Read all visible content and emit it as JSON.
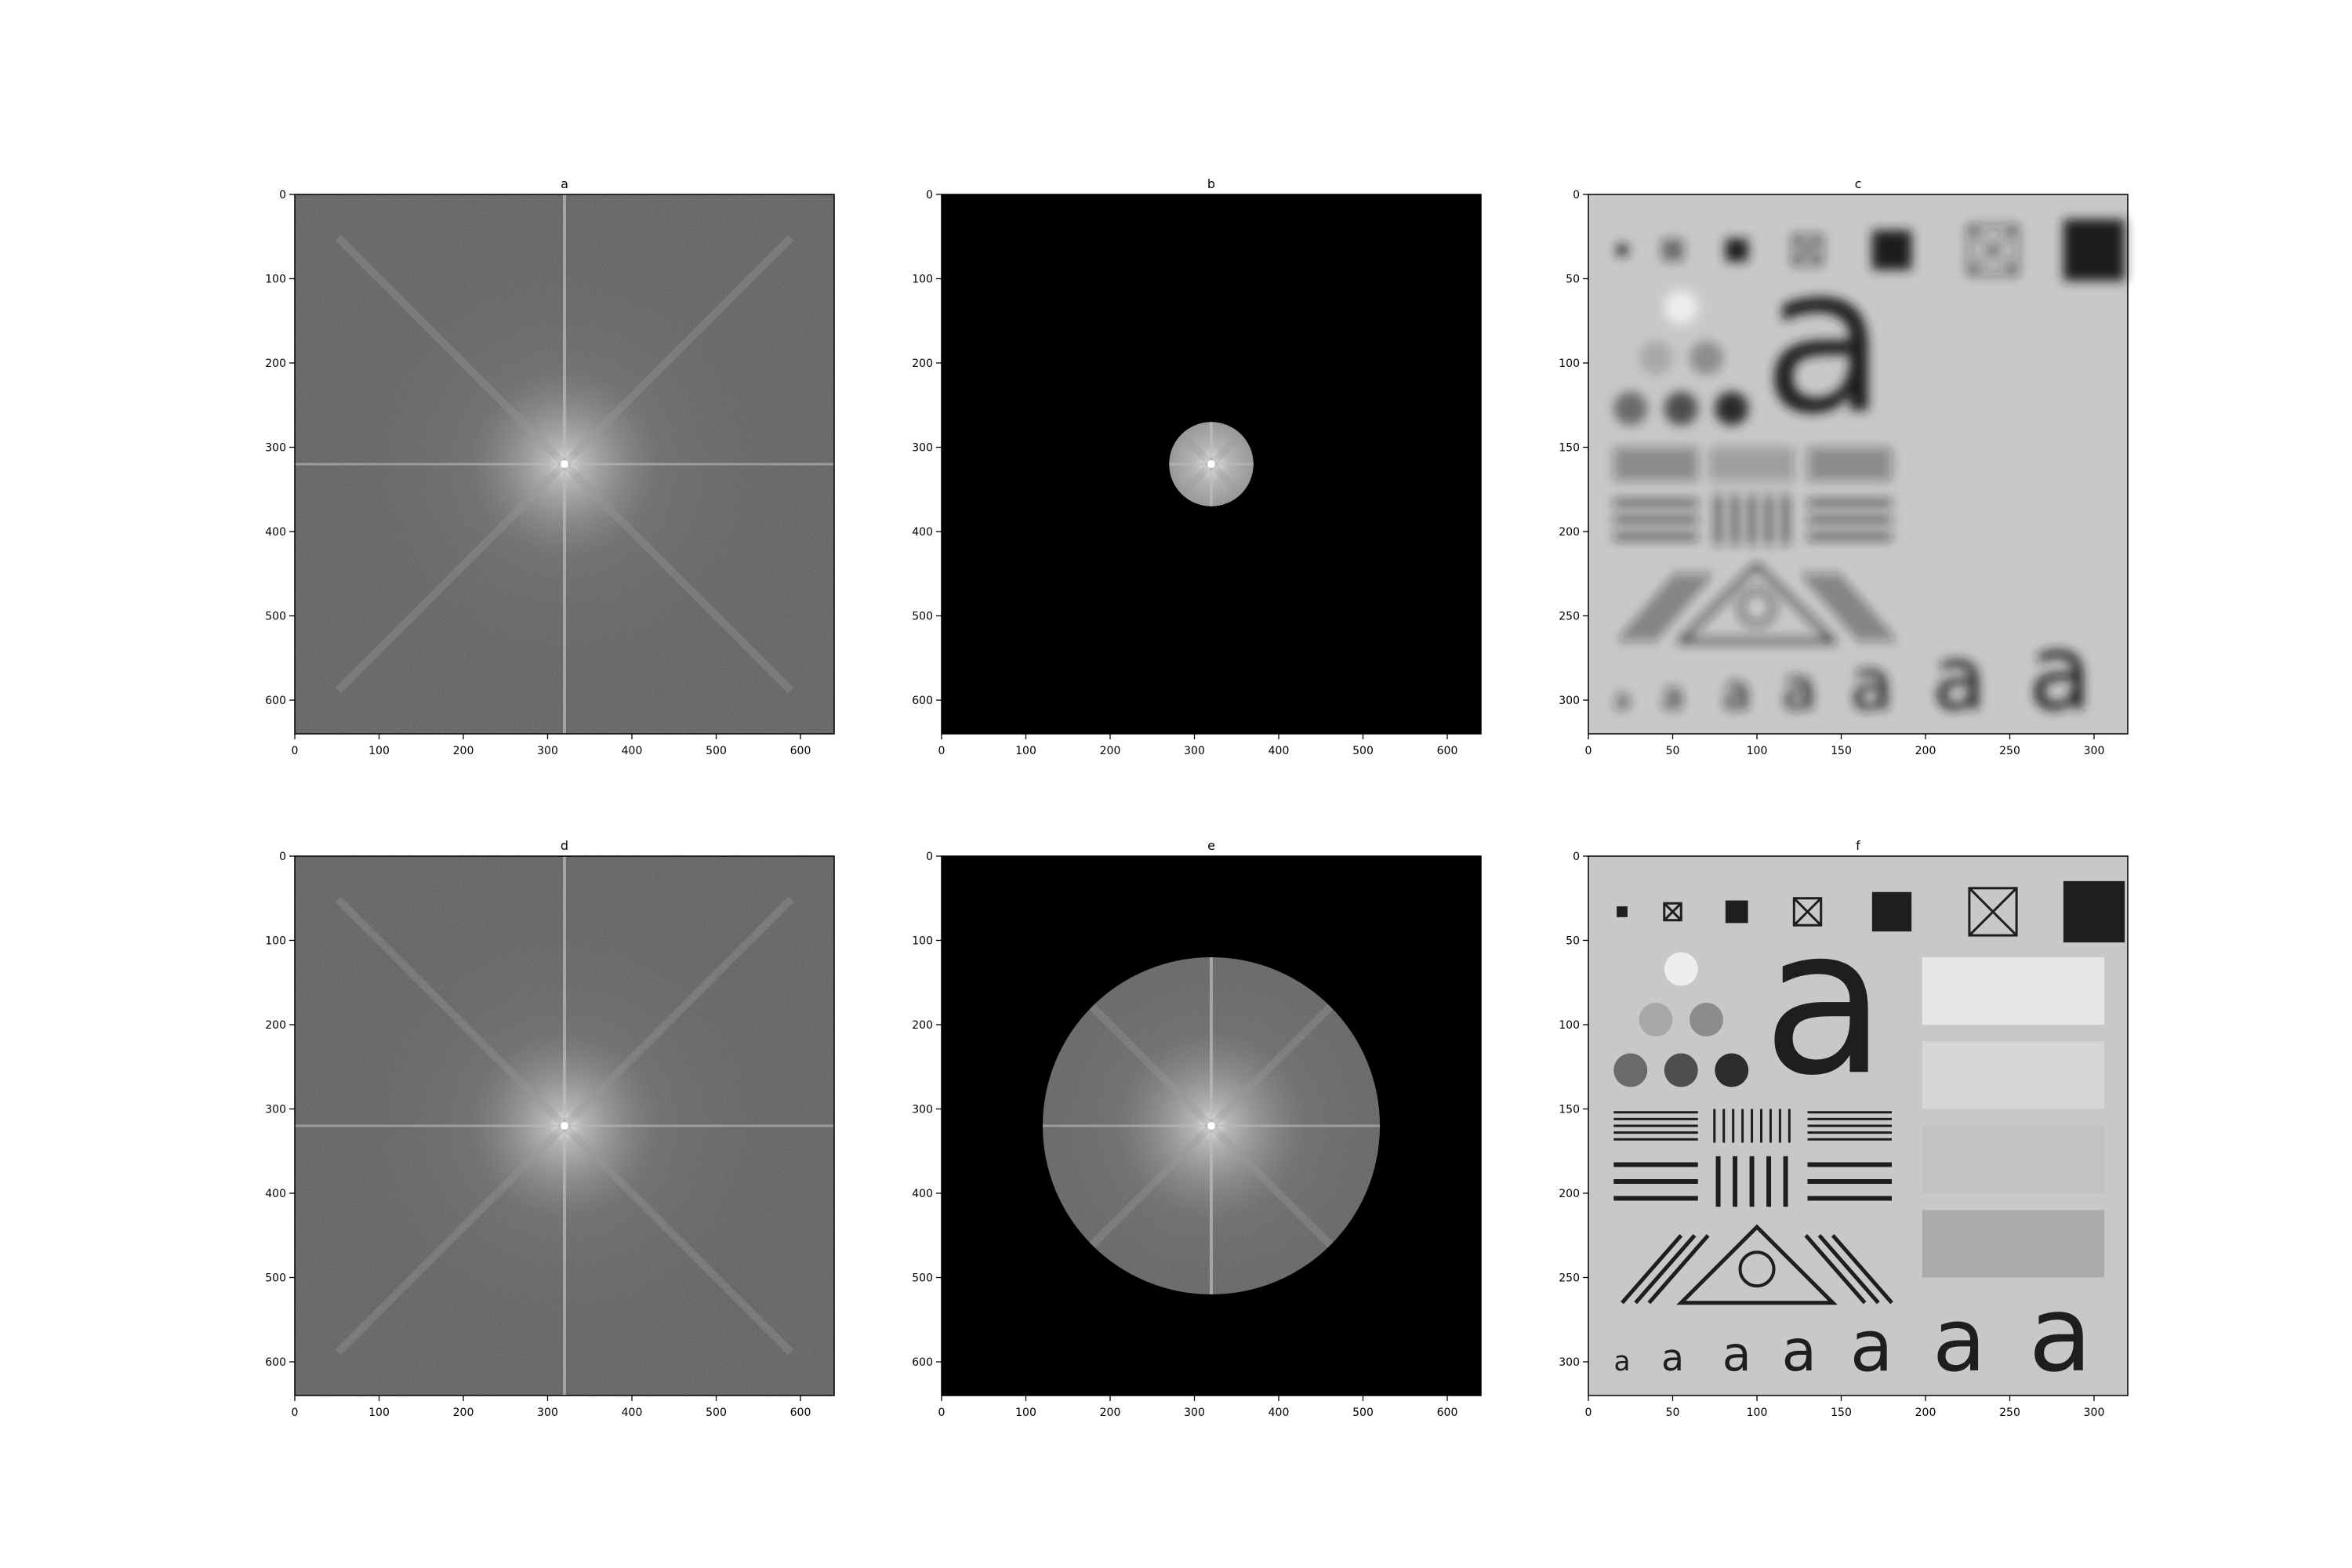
{
  "panels": [
    {
      "id": "a",
      "title": "a",
      "kind": "spectrum",
      "xticks": [
        "0",
        "100",
        "200",
        "300",
        "400",
        "500",
        "600"
      ],
      "yticks": [
        "0",
        "100",
        "200",
        "300",
        "400",
        "500",
        "600"
      ],
      "mask_radius": 0
    },
    {
      "id": "b",
      "title": "b",
      "kind": "masked_spectrum",
      "xticks": [
        "0",
        "100",
        "200",
        "300",
        "400",
        "500",
        "600"
      ],
      "yticks": [
        "0",
        "100",
        "200",
        "300",
        "400",
        "500",
        "600"
      ],
      "mask_radius": 50
    },
    {
      "id": "c",
      "title": "c",
      "kind": "blurred_chart",
      "xticks": [
        "0",
        "50",
        "100",
        "150",
        "200",
        "250",
        "300"
      ],
      "yticks": [
        "0",
        "50",
        "100",
        "150",
        "200",
        "250",
        "300"
      ],
      "mask_radius": 0
    },
    {
      "id": "d",
      "title": "d",
      "kind": "spectrum",
      "xticks": [
        "0",
        "100",
        "200",
        "300",
        "400",
        "500",
        "600"
      ],
      "yticks": [
        "0",
        "100",
        "200",
        "300",
        "400",
        "500",
        "600"
      ],
      "mask_radius": 0
    },
    {
      "id": "e",
      "title": "e",
      "kind": "masked_spectrum",
      "xticks": [
        "0",
        "100",
        "200",
        "300",
        "400",
        "500",
        "600"
      ],
      "yticks": [
        "0",
        "100",
        "200",
        "300",
        "400",
        "500",
        "600"
      ],
      "mask_radius": 200
    },
    {
      "id": "f",
      "title": "f",
      "kind": "sharp_chart",
      "xticks": [
        "0",
        "50",
        "100",
        "150",
        "200",
        "250",
        "300"
      ],
      "yticks": [
        "0",
        "50",
        "100",
        "150",
        "200",
        "250",
        "300"
      ],
      "mask_radius": 0
    }
  ],
  "chart_glyph": "a",
  "colors": {
    "background": "#ffffff",
    "spectrum_bg": "#5a5a5a",
    "mask": "#000000",
    "chart_bg": "#c8c8c8",
    "ink": "#1e1e1e"
  }
}
